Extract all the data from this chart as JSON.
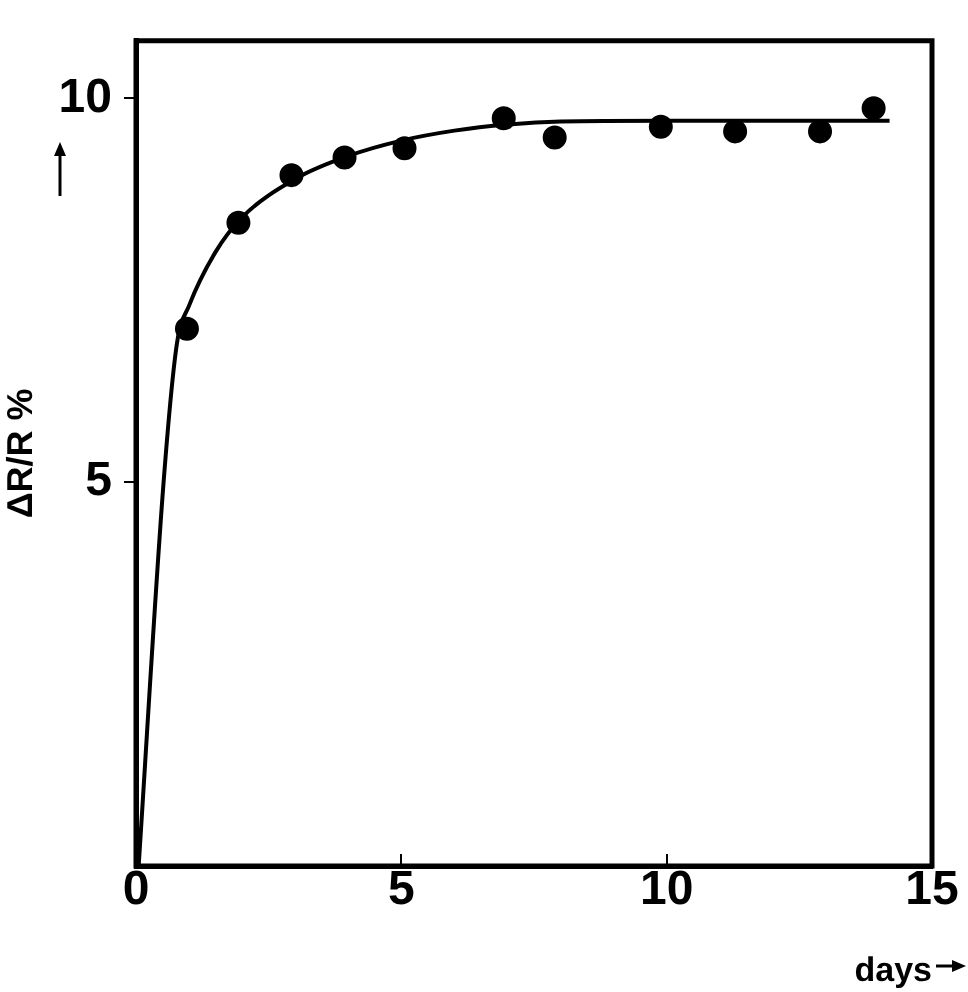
{
  "chart_data": {
    "type": "scatter",
    "xlabel": "days",
    "ylabel": "ΔR/R %",
    "xlim": [
      0,
      15
    ],
    "ylim": [
      0,
      10.75
    ],
    "xticks": [
      0,
      5,
      10,
      15
    ],
    "yticks": [
      5,
      10
    ],
    "grid": false,
    "legend": false,
    "marker": "circle",
    "series": [
      {
        "color": "#000000",
        "x": [
          0.96,
          1.93,
          2.93,
          3.93,
          5.06,
          6.93,
          7.89,
          9.89,
          11.29,
          12.89,
          13.9
        ],
        "values": [
          7.0,
          8.38,
          9.0,
          9.23,
          9.35,
          9.74,
          9.49,
          9.63,
          9.57,
          9.57,
          9.87
        ]
      },
      {
        "type": "line",
        "color": "#000000",
        "marker": "none",
        "line_style": "solid",
        "x": [
          0.05,
          0.52,
          0.77,
          1.0,
          1.5,
          2,
          3,
          4,
          5,
          6,
          7,
          8,
          10,
          14.2
        ],
        "values": [
          0,
          5,
          6.8,
          7.3,
          8.0,
          8.45,
          8.95,
          9.25,
          9.45,
          9.58,
          9.66,
          9.7,
          9.71,
          9.71
        ]
      }
    ]
  }
}
